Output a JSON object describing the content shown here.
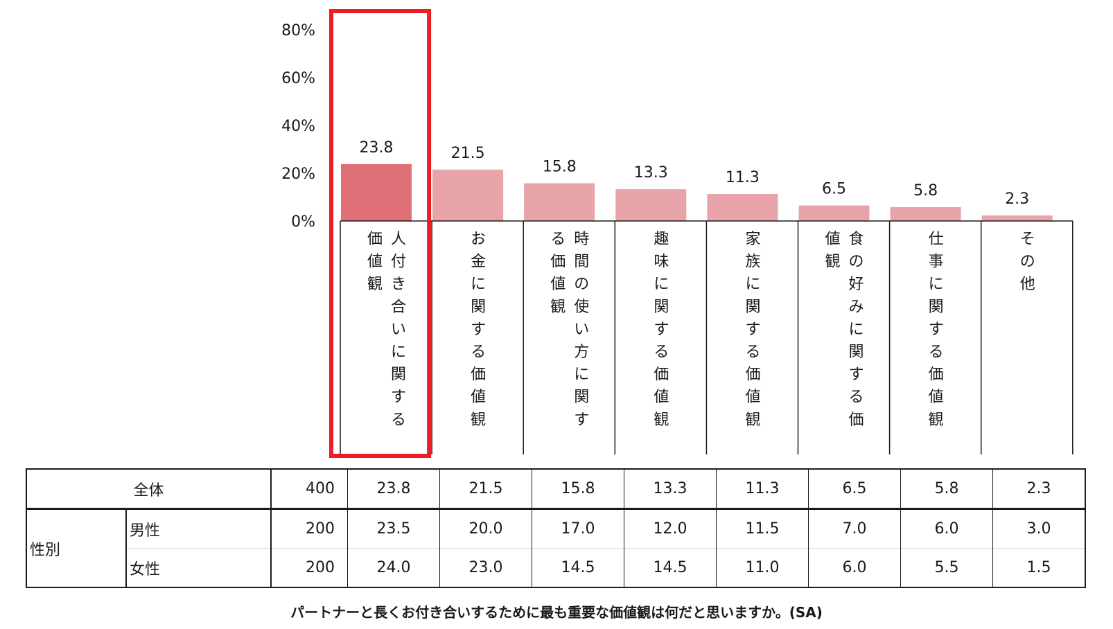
{
  "chart_data": {
    "type": "bar",
    "categories": [
      "人付き合いに関する価値観",
      "お金に関する価値観",
      "時間の使い方に関する価値観",
      "趣味に関する価値観",
      "家族に関する価値観",
      "食の好みに関する価値観",
      "仕事に関する価値観",
      "その他"
    ],
    "category_columns": [
      [
        "人付き合いに関する",
        "価値観"
      ],
      [
        "お金に関する価値観"
      ],
      [
        "時間の使い方に関す",
        "る価値観"
      ],
      [
        "趣味に関する価値観"
      ],
      [
        "家族に関する価値観"
      ],
      [
        "食の好みに関する価",
        "値観"
      ],
      [
        "仕事に関する価値観"
      ],
      [
        "その他"
      ]
    ],
    "values": [
      23.8,
      21.5,
      15.8,
      13.3,
      11.3,
      6.5,
      5.8,
      2.3
    ],
    "value_labels": [
      "23.8",
      "21.5",
      "15.8",
      "13.3",
      "11.3",
      "6.5",
      "5.8",
      "2.3"
    ],
    "yticks": [
      "0%",
      "20%",
      "40%",
      "60%",
      "80%"
    ],
    "ylim": [
      0,
      80
    ],
    "highlight_index": 0,
    "colors": {
      "bar": "#e9a4a9",
      "highlight_bar": "#e07078",
      "highlight_frame": "#ee1c24"
    },
    "grid": false,
    "title": "パートナーと長くお付き合いするために最も重要な価値観は何だと思いますか。(SA)"
  },
  "table": {
    "total_label": "全体",
    "total_n": "400",
    "total_values": [
      "23.8",
      "21.5",
      "15.8",
      "13.3",
      "11.3",
      "6.5",
      "5.8",
      "2.3"
    ],
    "group_label": "性別",
    "rows": [
      {
        "label": "男性",
        "n": "200",
        "values": [
          "23.5",
          "20.0",
          "17.0",
          "12.0",
          "11.5",
          "7.0",
          "6.0",
          "3.0"
        ]
      },
      {
        "label": "女性",
        "n": "200",
        "values": [
          "24.0",
          "23.0",
          "14.5",
          "14.5",
          "11.0",
          "6.0",
          "5.5",
          "1.5"
        ]
      }
    ]
  }
}
